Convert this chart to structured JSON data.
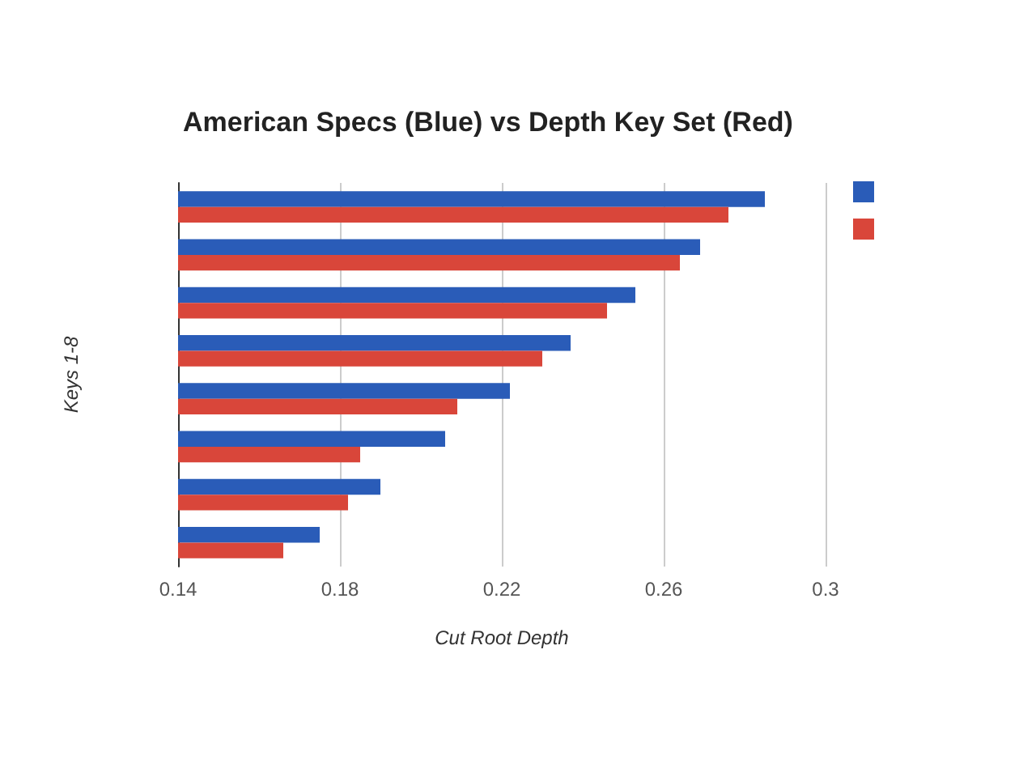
{
  "chart_data": {
    "type": "bar",
    "orientation": "horizontal",
    "title": "American Specs (Blue) vs Depth Key Set (Red)",
    "xlabel": "Cut Root Depth",
    "ylabel": "Keys 1-8",
    "categories": [
      null,
      null,
      null,
      null,
      null,
      null,
      null,
      null
    ],
    "series": [
      {
        "color": "#2a5cb8",
        "values": [
          0.285,
          0.269,
          0.253,
          0.237,
          0.222,
          0.206,
          0.19,
          0.175
        ]
      },
      {
        "color": "#d9463a",
        "values": [
          0.276,
          0.264,
          0.246,
          0.23,
          0.209,
          0.185,
          0.182,
          0.166
        ]
      }
    ],
    "xlim": [
      0.14,
      0.3
    ],
    "xticks": [
      0.14,
      0.18,
      0.22,
      0.26,
      0.3
    ],
    "grid": "x"
  }
}
